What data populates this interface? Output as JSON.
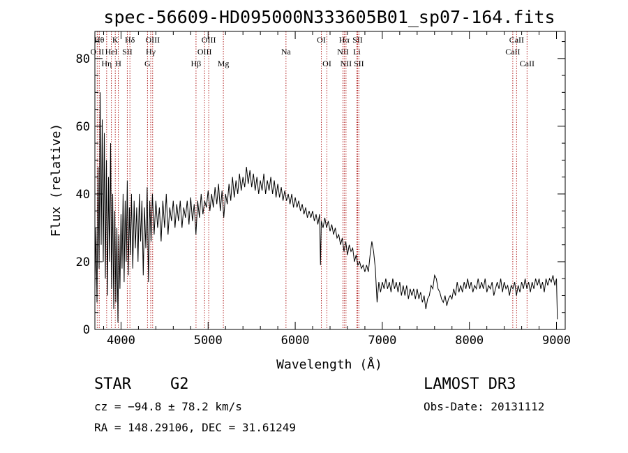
{
  "chart_data": {
    "type": "line",
    "title": "spec-56609-HD095000N333605B01_sp07-164.fits",
    "xlabel": "Wavelength (Å)",
    "ylabel": "Flux (relative)",
    "xlim": [
      3700,
      9100
    ],
    "ylim": [
      0,
      88
    ],
    "xticks": [
      4000,
      5000,
      6000,
      7000,
      8000,
      9000
    ],
    "xtick_labels": [
      "4000",
      "5000",
      "6000",
      "7000",
      "8000",
      "9000"
    ],
    "yticks": [
      0,
      20,
      40,
      60,
      80
    ],
    "ytick_labels": [
      "0",
      "20",
      "40",
      "60",
      "80"
    ],
    "grid": false,
    "series": [
      {
        "name": "flux",
        "color": "#000000",
        "points": [
          [
            3700,
            12
          ],
          [
            3712,
            30
          ],
          [
            3724,
            8
          ],
          [
            3736,
            48
          ],
          [
            3748,
            18
          ],
          [
            3760,
            70
          ],
          [
            3772,
            25
          ],
          [
            3784,
            62
          ],
          [
            3796,
            20
          ],
          [
            3808,
            58
          ],
          [
            3820,
            15
          ],
          [
            3832,
            50
          ],
          [
            3844,
            10
          ],
          [
            3856,
            45
          ],
          [
            3868,
            20
          ],
          [
            3880,
            55
          ],
          [
            3892,
            12
          ],
          [
            3904,
            40
          ],
          [
            3916,
            6
          ],
          [
            3928,
            35
          ],
          [
            3940,
            8
          ],
          [
            3952,
            30
          ],
          [
            3964,
            2
          ],
          [
            3976,
            28
          ],
          [
            3988,
            12
          ],
          [
            4000,
            34
          ],
          [
            4012,
            18
          ],
          [
            4024,
            40
          ],
          [
            4036,
            14
          ],
          [
            4048,
            38
          ],
          [
            4060,
            20
          ],
          [
            4072,
            44
          ],
          [
            4084,
            16
          ],
          [
            4096,
            36
          ],
          [
            4108,
            22
          ],
          [
            4120,
            40
          ],
          [
            4135,
            18
          ],
          [
            4150,
            38
          ],
          [
            4165,
            24
          ],
          [
            4180,
            36
          ],
          [
            4195,
            20
          ],
          [
            4210,
            40
          ],
          [
            4225,
            26
          ],
          [
            4240,
            38
          ],
          [
            4255,
            16
          ],
          [
            4270,
            36
          ],
          [
            4285,
            24
          ],
          [
            4300,
            42
          ],
          [
            4315,
            14
          ],
          [
            4330,
            38
          ],
          [
            4345,
            26
          ],
          [
            4360,
            40
          ],
          [
            4380,
            28
          ],
          [
            4400,
            38
          ],
          [
            4420,
            30
          ],
          [
            4440,
            36
          ],
          [
            4460,
            26
          ],
          [
            4480,
            38
          ],
          [
            4500,
            30
          ],
          [
            4520,
            40
          ],
          [
            4540,
            28
          ],
          [
            4560,
            36
          ],
          [
            4580,
            32
          ],
          [
            4600,
            38
          ],
          [
            4620,
            30
          ],
          [
            4640,
            37
          ],
          [
            4660,
            32
          ],
          [
            4680,
            38
          ],
          [
            4700,
            30
          ],
          [
            4720,
            36
          ],
          [
            4740,
            33
          ],
          [
            4760,
            38
          ],
          [
            4780,
            31
          ],
          [
            4800,
            39
          ],
          [
            4820,
            32
          ],
          [
            4840,
            37
          ],
          [
            4860,
            28
          ],
          [
            4880,
            38
          ],
          [
            4900,
            33
          ],
          [
            4920,
            40
          ],
          [
            4940,
            34
          ],
          [
            4960,
            38
          ],
          [
            4980,
            36
          ],
          [
            5000,
            41
          ],
          [
            5020,
            35
          ],
          [
            5040,
            40
          ],
          [
            5060,
            36
          ],
          [
            5080,
            42
          ],
          [
            5100,
            37
          ],
          [
            5120,
            43
          ],
          [
            5140,
            35
          ],
          [
            5160,
            41
          ],
          [
            5180,
            33
          ],
          [
            5200,
            40
          ],
          [
            5220,
            37
          ],
          [
            5240,
            43
          ],
          [
            5260,
            38
          ],
          [
            5280,
            45
          ],
          [
            5300,
            39
          ],
          [
            5320,
            44
          ],
          [
            5340,
            40
          ],
          [
            5360,
            46
          ],
          [
            5380,
            41
          ],
          [
            5400,
            45
          ],
          [
            5420,
            42
          ],
          [
            5440,
            48
          ],
          [
            5460,
            43
          ],
          [
            5480,
            47
          ],
          [
            5500,
            42
          ],
          [
            5520,
            46
          ],
          [
            5540,
            41
          ],
          [
            5560,
            45
          ],
          [
            5580,
            40
          ],
          [
            5600,
            44
          ],
          [
            5620,
            41
          ],
          [
            5640,
            46
          ],
          [
            5660,
            40
          ],
          [
            5680,
            44
          ],
          [
            5700,
            41
          ],
          [
            5720,
            45
          ],
          [
            5740,
            40
          ],
          [
            5760,
            44
          ],
          [
            5780,
            39
          ],
          [
            5800,
            43
          ],
          [
            5820,
            39
          ],
          [
            5840,
            42
          ],
          [
            5860,
            38
          ],
          [
            5880,
            41
          ],
          [
            5900,
            38
          ],
          [
            5920,
            40
          ],
          [
            5940,
            37
          ],
          [
            5960,
            40
          ],
          [
            5980,
            36
          ],
          [
            6000,
            39
          ],
          [
            6020,
            36
          ],
          [
            6040,
            38
          ],
          [
            6060,
            35
          ],
          [
            6080,
            37
          ],
          [
            6100,
            34
          ],
          [
            6120,
            36
          ],
          [
            6140,
            33
          ],
          [
            6160,
            35
          ],
          [
            6180,
            33
          ],
          [
            6200,
            35
          ],
          [
            6220,
            32
          ],
          [
            6240,
            34
          ],
          [
            6260,
            31
          ],
          [
            6280,
            34
          ],
          [
            6290,
            19
          ],
          [
            6300,
            32
          ],
          [
            6320,
            30
          ],
          [
            6340,
            33
          ],
          [
            6360,
            30
          ],
          [
            6380,
            32
          ],
          [
            6400,
            29
          ],
          [
            6420,
            31
          ],
          [
            6440,
            28
          ],
          [
            6460,
            30
          ],
          [
            6480,
            27
          ],
          [
            6500,
            28
          ],
          [
            6520,
            25
          ],
          [
            6540,
            27
          ],
          [
            6560,
            23
          ],
          [
            6580,
            26
          ],
          [
            6600,
            22
          ],
          [
            6620,
            25
          ],
          [
            6640,
            23
          ],
          [
            6660,
            24
          ],
          [
            6680,
            20
          ],
          [
            6700,
            22
          ],
          [
            6720,
            19
          ],
          [
            6740,
            20
          ],
          [
            6760,
            18
          ],
          [
            6780,
            19
          ],
          [
            6800,
            17
          ],
          [
            6820,
            19
          ],
          [
            6840,
            17
          ],
          [
            6860,
            22
          ],
          [
            6880,
            26
          ],
          [
            6900,
            23
          ],
          [
            6920,
            18
          ],
          [
            6940,
            8
          ],
          [
            6960,
            14
          ],
          [
            6980,
            11
          ],
          [
            7000,
            14
          ],
          [
            7020,
            12
          ],
          [
            7040,
            15
          ],
          [
            7060,
            12
          ],
          [
            7080,
            14
          ],
          [
            7100,
            11
          ],
          [
            7120,
            15
          ],
          [
            7140,
            12
          ],
          [
            7160,
            14
          ],
          [
            7180,
            11
          ],
          [
            7200,
            14
          ],
          [
            7220,
            10
          ],
          [
            7240,
            13
          ],
          [
            7260,
            10
          ],
          [
            7280,
            13
          ],
          [
            7300,
            9
          ],
          [
            7320,
            12
          ],
          [
            7340,
            10
          ],
          [
            7360,
            12
          ],
          [
            7380,
            9
          ],
          [
            7400,
            12
          ],
          [
            7420,
            9
          ],
          [
            7440,
            11
          ],
          [
            7460,
            8
          ],
          [
            7480,
            10
          ],
          [
            7500,
            6
          ],
          [
            7520,
            9
          ],
          [
            7540,
            10
          ],
          [
            7560,
            13
          ],
          [
            7580,
            12
          ],
          [
            7600,
            16
          ],
          [
            7620,
            15
          ],
          [
            7640,
            12
          ],
          [
            7660,
            11
          ],
          [
            7680,
            9
          ],
          [
            7700,
            8
          ],
          [
            7720,
            10
          ],
          [
            7740,
            7
          ],
          [
            7760,
            9
          ],
          [
            7780,
            10
          ],
          [
            7800,
            9
          ],
          [
            7820,
            12
          ],
          [
            7840,
            10
          ],
          [
            7860,
            14
          ],
          [
            7880,
            11
          ],
          [
            7900,
            13
          ],
          [
            7920,
            11
          ],
          [
            7940,
            14
          ],
          [
            7960,
            12
          ],
          [
            7980,
            15
          ],
          [
            8000,
            12
          ],
          [
            8020,
            14
          ],
          [
            8040,
            11
          ],
          [
            8060,
            13
          ],
          [
            8080,
            12
          ],
          [
            8100,
            15
          ],
          [
            8120,
            12
          ],
          [
            8140,
            14
          ],
          [
            8160,
            12
          ],
          [
            8180,
            15
          ],
          [
            8200,
            11
          ],
          [
            8220,
            13
          ],
          [
            8240,
            12
          ],
          [
            8260,
            14
          ],
          [
            8280,
            10
          ],
          [
            8300,
            12
          ],
          [
            8320,
            14
          ],
          [
            8340,
            12
          ],
          [
            8360,
            15
          ],
          [
            8380,
            11
          ],
          [
            8400,
            14
          ],
          [
            8420,
            12
          ],
          [
            8440,
            13
          ],
          [
            8460,
            10
          ],
          [
            8480,
            13
          ],
          [
            8500,
            12
          ],
          [
            8520,
            14
          ],
          [
            8540,
            10
          ],
          [
            8560,
            13
          ],
          [
            8580,
            11
          ],
          [
            8600,
            14
          ],
          [
            8620,
            12
          ],
          [
            8640,
            15
          ],
          [
            8660,
            12
          ],
          [
            8680,
            14
          ],
          [
            8700,
            11
          ],
          [
            8720,
            14
          ],
          [
            8740,
            12
          ],
          [
            8760,
            15
          ],
          [
            8780,
            13
          ],
          [
            8800,
            15
          ],
          [
            8820,
            12
          ],
          [
            8840,
            14
          ],
          [
            8860,
            11
          ],
          [
            8880,
            15
          ],
          [
            8900,
            13
          ],
          [
            8920,
            15
          ],
          [
            8940,
            14
          ],
          [
            8960,
            16
          ],
          [
            8980,
            13
          ],
          [
            9000,
            15
          ],
          [
            9010,
            3
          ]
        ]
      }
    ],
    "line_markers": [
      {
        "label": "O II",
        "wavelength": 3727,
        "row": 1
      },
      {
        "label": "Hθ",
        "wavelength": 3750,
        "row": 0
      },
      {
        "label": "Hη",
        "wavelength": 3835,
        "row": 2
      },
      {
        "label": "HeI",
        "wavelength": 3889,
        "row": 1
      },
      {
        "label": "K",
        "wavelength": 3934,
        "row": 0
      },
      {
        "label": "H",
        "wavelength": 3969,
        "row": 2
      },
      {
        "label": "SII",
        "wavelength": 4072,
        "row": 1
      },
      {
        "label": "Hδ",
        "wavelength": 4102,
        "row": 0
      },
      {
        "label": "G",
        "wavelength": 4304,
        "row": 2
      },
      {
        "label": "Hγ",
        "wavelength": 4341,
        "row": 1
      },
      {
        "label": "OIII",
        "wavelength": 4363,
        "row": 0
      },
      {
        "label": "Hβ",
        "wavelength": 4861,
        "row": 2
      },
      {
        "label": "OIII",
        "wavelength": 4959,
        "row": 1
      },
      {
        "label": "OIII",
        "wavelength": 5007,
        "row": 0
      },
      {
        "label": "Mg",
        "wavelength": 5175,
        "row": 2
      },
      {
        "label": "Na",
        "wavelength": 5894,
        "row": 1
      },
      {
        "label": "OI",
        "wavelength": 6300,
        "row": 0
      },
      {
        "label": "OI",
        "wavelength": 6364,
        "row": 2
      },
      {
        "label": "NII",
        "wavelength": 6548,
        "row": 1
      },
      {
        "label": "Hα",
        "wavelength": 6563,
        "row": 0
      },
      {
        "label": "NII",
        "wavelength": 6583,
        "row": 2
      },
      {
        "label": "Li",
        "wavelength": 6708,
        "row": 1
      },
      {
        "label": "SII",
        "wavelength": 6716,
        "row": 0
      },
      {
        "label": "SII",
        "wavelength": 6731,
        "row": 2
      },
      {
        "label": "CaII",
        "wavelength": 8498,
        "row": 1
      },
      {
        "label": "CaII",
        "wavelength": 8542,
        "row": 0
      },
      {
        "label": "CaII",
        "wavelength": 8662,
        "row": 2
      }
    ],
    "colors": {
      "marker_line": "#b22222",
      "spectrum": "#000000",
      "axis": "#000000"
    }
  },
  "info": {
    "class": "STAR",
    "subclass": "G2",
    "survey": "LAMOST DR3",
    "cz": "cz = −94.8 ± 78.2 km/s",
    "obs_date": "Obs-Date: 20131112",
    "radec": "RA = 148.29106, DEC =  31.61249"
  }
}
